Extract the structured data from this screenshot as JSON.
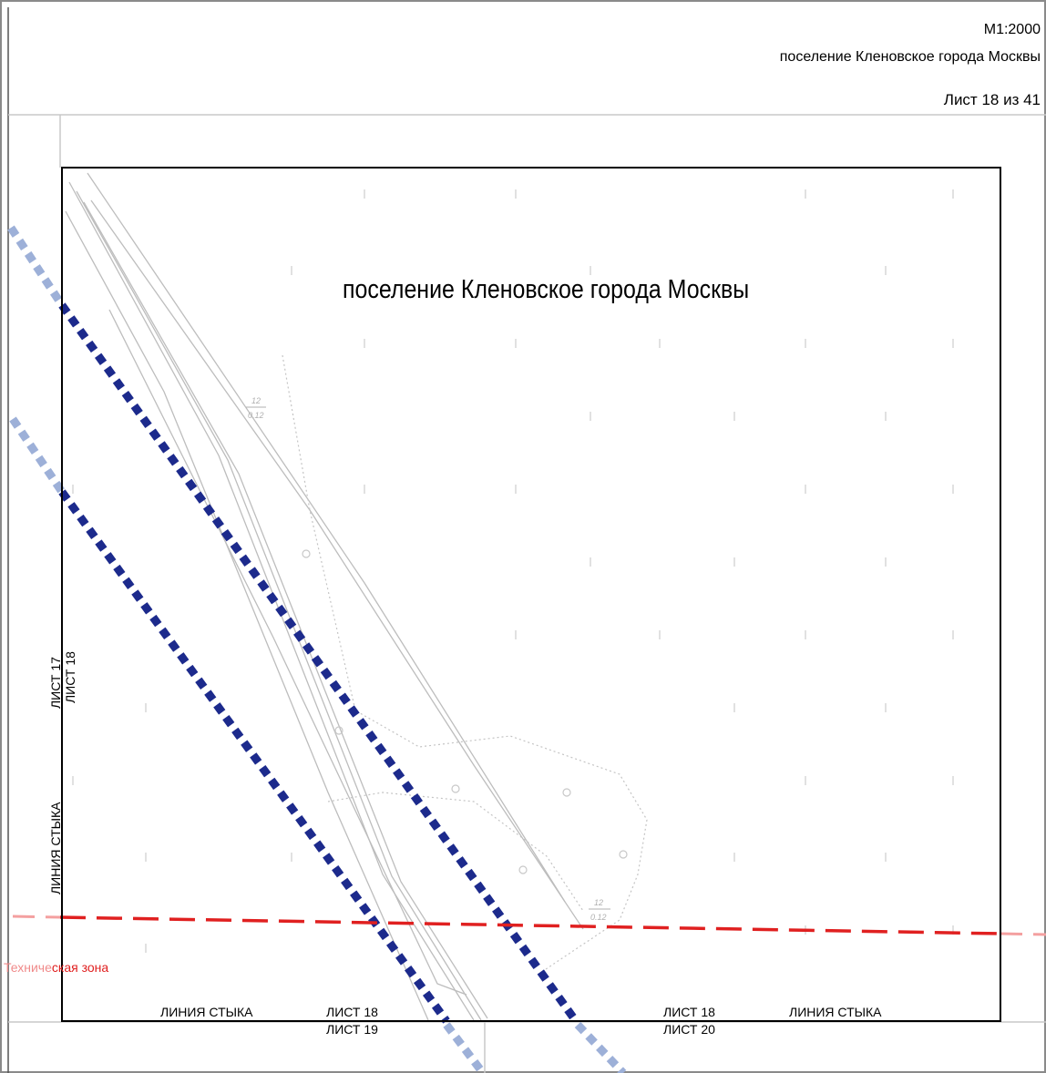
{
  "header": {
    "scale": "М1:2000",
    "place": "поселение Кленовское  города Москвы",
    "sheet": "Лист 18 из 41"
  },
  "map": {
    "title": "поселение Кленовское города Москвы",
    "zone_label_faded": "Техниче",
    "zone_label": "ская зона",
    "junction_left": "ЛИНИЯ СТЫКА",
    "sheet_left_a": "ЛИСТ 17",
    "sheet_left_b": "ЛИСТ 18",
    "junction_bottom_left": "ЛИНИЯ СТЫКА",
    "sheet_bottom_1a": "ЛИСТ 18",
    "sheet_bottom_1b": "ЛИСТ 19",
    "sheet_bottom_2a": "ЛИСТ 18",
    "sheet_bottom_2b": "ЛИСТ 20",
    "junction_bottom_right": "ЛИНИЯ СТЫКА",
    "plot_label_1_top": "12",
    "plot_label_1_bottom": "0.12",
    "plot_label_2_top": "12",
    "plot_label_2_bottom": "0.12"
  },
  "colors": {
    "boundary_dark": "#1c2a8c",
    "boundary_light": "#9db0d8",
    "red_zone": "#e02020",
    "frame": "#000000",
    "faint_lines": "#b8b8b8"
  }
}
